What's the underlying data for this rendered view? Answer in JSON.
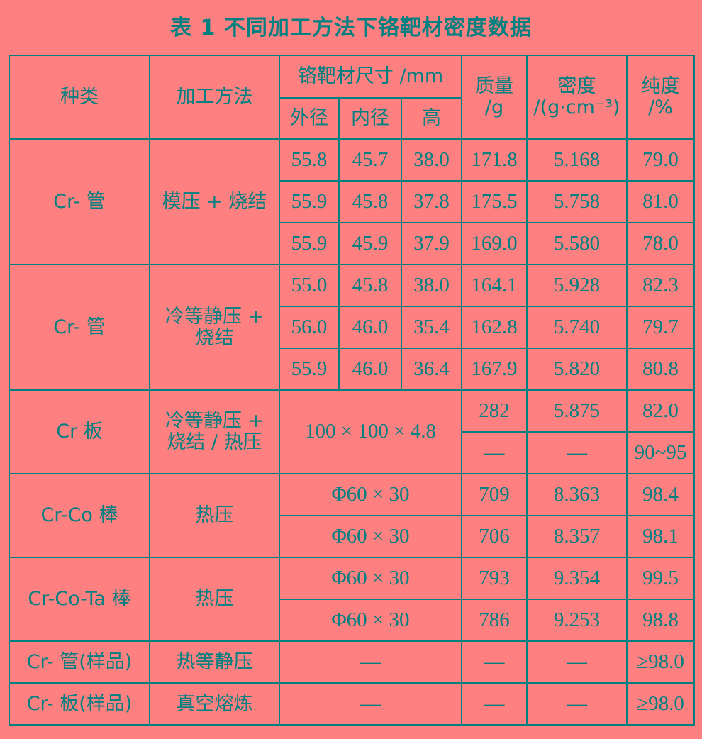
{
  "title": "表 1   不同加工方法下铬靶材密度数据",
  "headers": {
    "type": "种类",
    "method": "加工方法",
    "size": "铬靶材尺寸 /mm",
    "outer": "外径",
    "inner": "内径",
    "height": "高",
    "mass": "质量\n/g",
    "density": "密度\n/(g·cm⁻³)",
    "purity": "纯度\n/%"
  },
  "groups": [
    {
      "type": "Cr- 管",
      "method": "模压 + 烧结",
      "rows": [
        [
          "55.8",
          "45.7",
          "38.0",
          "171.8",
          "5.168",
          "79.0"
        ],
        [
          "55.9",
          "45.8",
          "37.8",
          "175.5",
          "5.758",
          "81.0"
        ],
        [
          "55.9",
          "45.9",
          "37.9",
          "169.0",
          "5.580",
          "78.0"
        ]
      ]
    },
    {
      "type": "Cr- 管",
      "method": "冷等静压 +\n烧结",
      "rows": [
        [
          "55.0",
          "45.8",
          "38.0",
          "164.1",
          "5.928",
          "82.3"
        ],
        [
          "56.0",
          "46.0",
          "35.4",
          "162.8",
          "5.740",
          "79.7"
        ],
        [
          "55.9",
          "46.0",
          "36.4",
          "167.9",
          "5.820",
          "80.8"
        ]
      ]
    },
    {
      "type": "Cr 板",
      "method": "冷等静压 +\n烧结 / 热压",
      "size": "100 × 100 × 4.8",
      "rows": [
        [
          "282",
          "5.875",
          "82.0"
        ],
        [
          "—",
          "—",
          "90~95"
        ]
      ]
    },
    {
      "type": "Cr-Co 棒",
      "method": "热压",
      "rows": [
        [
          "Φ60 × 30",
          "709",
          "8.363",
          "98.4"
        ],
        [
          "Φ60 × 30",
          "706",
          "8.357",
          "98.1"
        ]
      ]
    },
    {
      "type": "Cr-Co-Ta 棒",
      "method": "热压",
      "rows": [
        [
          "Φ60 × 30",
          "793",
          "9.354",
          "99.5"
        ],
        [
          "Φ60 × 30",
          "786",
          "9.253",
          "98.8"
        ]
      ]
    },
    {
      "type": "Cr- 管(样品)",
      "method": "热等静压",
      "rows": [
        [
          "—",
          "—",
          "—",
          "≥98.0"
        ]
      ]
    },
    {
      "type": "Cr- 板(样品)",
      "method": "真空熔炼",
      "rows": [
        [
          "—",
          "—",
          "—",
          "≥98.0"
        ]
      ]
    }
  ]
}
